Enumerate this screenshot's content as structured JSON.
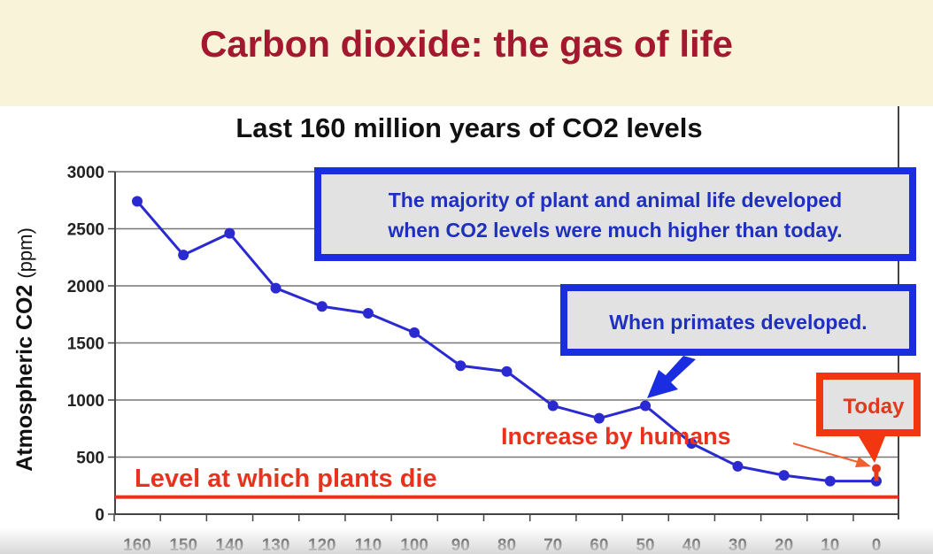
{
  "slide": {
    "title": "Carbon dioxide: the gas of life"
  },
  "chart_data": {
    "type": "line",
    "title": "Last 160 million years of CO2 levels",
    "xlabel": "",
    "ylabel": "Atmospheric CO2 (ppm)",
    "ylabel_main": "Atmospheric CO2",
    "ylabel_unit": "(ppm)",
    "x_reversed": true,
    "xlim": [
      160,
      0
    ],
    "ylim": [
      0,
      3000
    ],
    "x_ticks": [
      "160",
      "150",
      "140",
      "130",
      "120",
      "110",
      "100",
      "90",
      "80",
      "70",
      "60",
      "50",
      "40",
      "30",
      "20",
      "10",
      "0"
    ],
    "y_ticks": [
      "0",
      "500",
      "1000",
      "1500",
      "2000",
      "2500",
      "3000"
    ],
    "grid": true,
    "series": [
      {
        "name": "CO2",
        "color": "#2a2ad0",
        "x": [
          160,
          150,
          140,
          130,
          120,
          110,
          100,
          90,
          80,
          70,
          60,
          50,
          40,
          30,
          20,
          10,
          0
        ],
        "y": [
          2740,
          2270,
          2460,
          1980,
          1820,
          1760,
          1590,
          1300,
          1250,
          950,
          840,
          950,
          620,
          420,
          340,
          290,
          290
        ]
      }
    ],
    "today_point": {
      "x": 0,
      "y": 400,
      "color": "#e83a1a"
    },
    "threshold": {
      "value": 150,
      "label": "Level at which plants die",
      "color": "#e8321e"
    },
    "annotations": {
      "majority_line1": "The majority of plant and animal life developed",
      "majority_line2": "when CO2 levels were much higher than today.",
      "primates": "When primates developed.",
      "today": "Today",
      "increase": "Increase by humans"
    }
  }
}
